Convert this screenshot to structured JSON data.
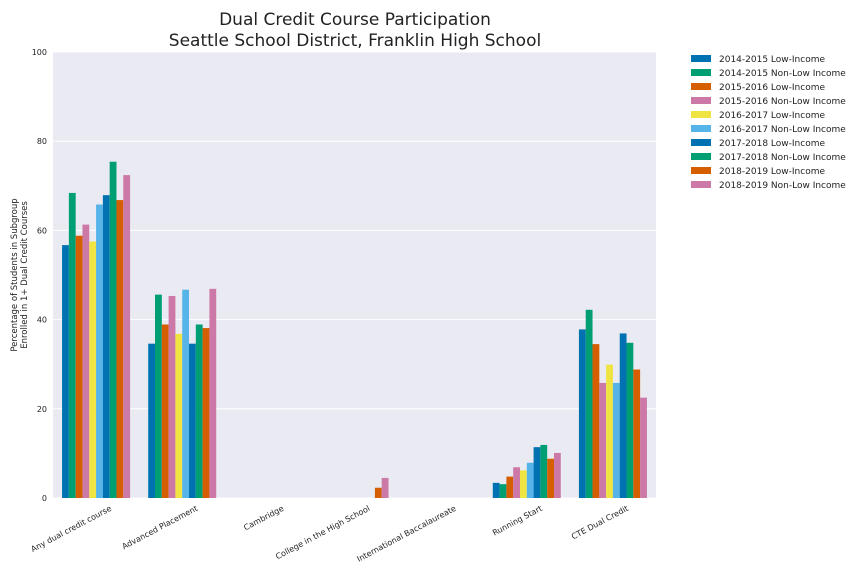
{
  "chart_data": {
    "type": "bar",
    "title": [
      "Dual Credit Course Participation",
      "Seattle School District, Franklin High School"
    ],
    "ylabel": [
      "Percentage of Students in Subgroup",
      "Enrolled in 1+ Dual Credit Courses"
    ],
    "xlabel": "",
    "ylim": [
      0,
      100
    ],
    "yticks": [
      0,
      20,
      40,
      60,
      80,
      100
    ],
    "grid": true,
    "legend_position": "outside-top-right",
    "categories": [
      "Any dual credit course",
      "Advanced Placement",
      "Cambridge",
      "College in the High School",
      "International Baccalaureate",
      "Running Start",
      "CTE Dual Credit"
    ],
    "series": [
      {
        "name": "2014-2015 Low-Income",
        "color": "#0072B2",
        "values": [
          56.7,
          34.6,
          0,
          0,
          0,
          3.4,
          37.8
        ]
      },
      {
        "name": "2014-2015 Non-Low Income",
        "color": "#009E73",
        "values": [
          68.4,
          45.6,
          0,
          0,
          0,
          3.1,
          42.2
        ]
      },
      {
        "name": "2015-2016 Low-Income",
        "color": "#D55E00",
        "values": [
          58.8,
          38.9,
          0,
          0,
          0,
          4.8,
          34.5
        ]
      },
      {
        "name": "2015-2016 Non-Low Income",
        "color": "#CC79A7",
        "values": [
          61.3,
          45.3,
          0,
          0,
          0,
          6.9,
          25.8
        ]
      },
      {
        "name": "2016-2017 Low-Income",
        "color": "#F0E442",
        "values": [
          57.5,
          36.8,
          0,
          0,
          0,
          6.2,
          29.9
        ]
      },
      {
        "name": "2016-2017 Non-Low Income",
        "color": "#56B4E9",
        "values": [
          65.8,
          46.7,
          0,
          0,
          0,
          7.9,
          25.8
        ]
      },
      {
        "name": "2017-2018 Low-Income",
        "color": "#0072B2",
        "values": [
          67.9,
          34.6,
          0,
          0,
          0,
          11.4,
          36.9
        ]
      },
      {
        "name": "2017-2018 Non-Low Income",
        "color": "#009E73",
        "values": [
          75.4,
          38.9,
          0,
          0,
          0,
          11.9,
          34.8
        ]
      },
      {
        "name": "2018-2019 Low-Income",
        "color": "#D55E00",
        "values": [
          66.8,
          38.1,
          0,
          2.3,
          0,
          8.8,
          28.8
        ]
      },
      {
        "name": "2018-2019 Non-Low Income",
        "color": "#CC79A7",
        "values": [
          72.4,
          46.9,
          0,
          4.5,
          0,
          10.1,
          22.5
        ]
      }
    ]
  }
}
